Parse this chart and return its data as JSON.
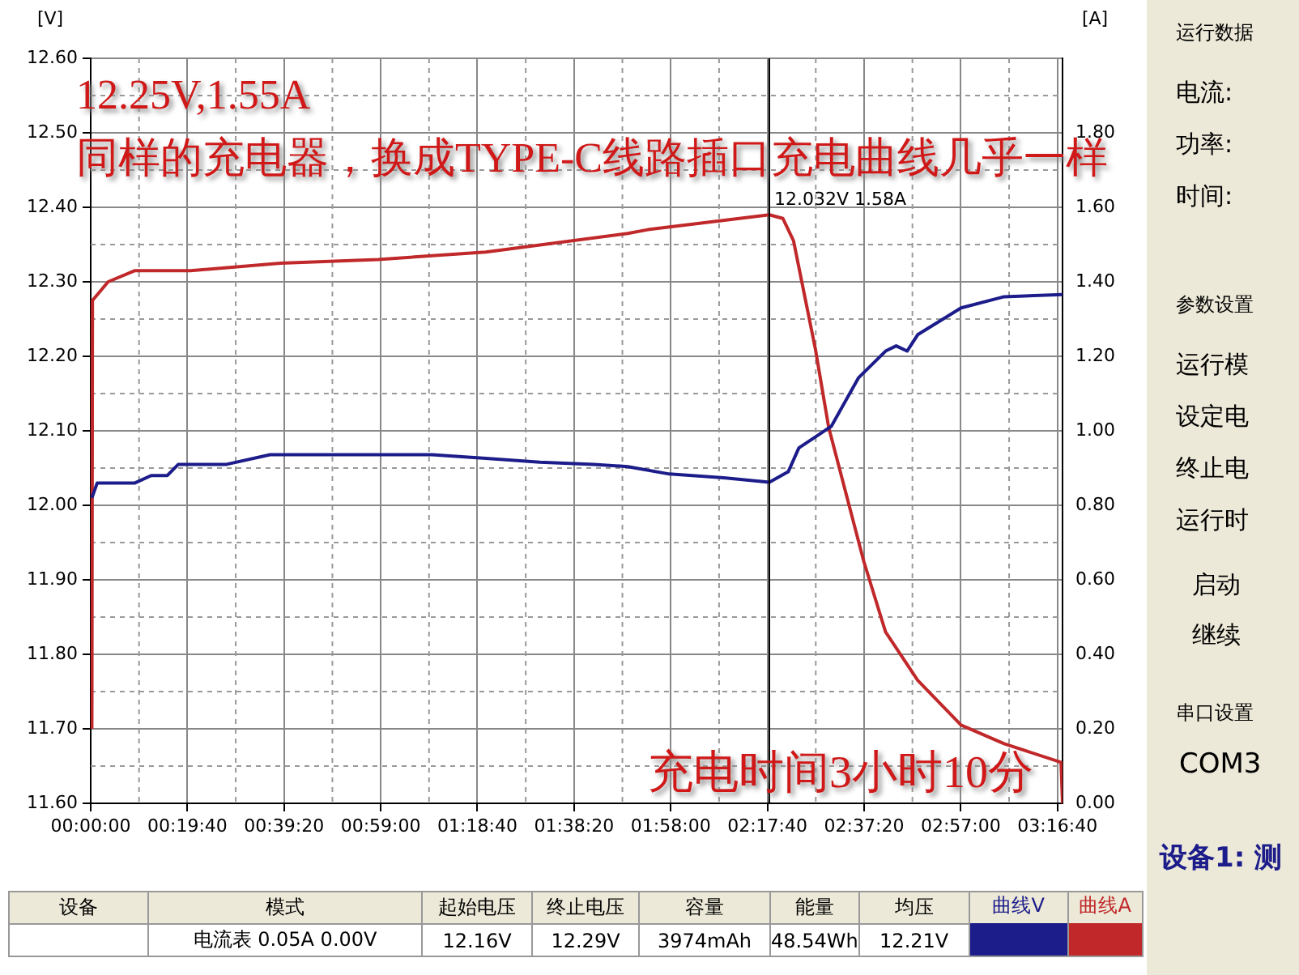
{
  "chart_data": {
    "type": "line",
    "ylabel": "[V]",
    "y2label": "[A]",
    "xlim": [
      0,
      3.295
    ],
    "xticks": [
      {
        "value": 0,
        "label": "00:00:00"
      },
      {
        "value": 0.3278,
        "label": "00:19:40"
      },
      {
        "value": 0.6556,
        "label": "00:39:20"
      },
      {
        "value": 0.9833,
        "label": "00:59:00"
      },
      {
        "value": 1.3111,
        "label": "01:18:40"
      },
      {
        "value": 1.6389,
        "label": "01:38:20"
      },
      {
        "value": 1.9667,
        "label": "01:58:00"
      },
      {
        "value": 2.2944,
        "label": "02:17:40"
      },
      {
        "value": 2.6222,
        "label": "02:37:20"
      },
      {
        "value": 2.95,
        "label": "02:57:00"
      },
      {
        "value": 3.2778,
        "label": "03:16:40"
      }
    ],
    "ylim": [
      11.6,
      12.6
    ],
    "yticks": [
      {
        "value": 11.6,
        "label": "11.60"
      },
      {
        "value": 11.7,
        "label": "11.70"
      },
      {
        "value": 11.8,
        "label": "11.80"
      },
      {
        "value": 11.9,
        "label": "11.90"
      },
      {
        "value": 12.0,
        "label": "12.00"
      },
      {
        "value": 12.1,
        "label": "12.10"
      },
      {
        "value": 12.2,
        "label": "12.20"
      },
      {
        "value": 12.3,
        "label": "12.30"
      },
      {
        "value": 12.4,
        "label": "12.40"
      },
      {
        "value": 12.5,
        "label": "12.50"
      },
      {
        "value": 12.6,
        "label": "12.60"
      }
    ],
    "y2lim": [
      0,
      2
    ],
    "y2ticks": [
      {
        "value": 0,
        "label": "0.00"
      },
      {
        "value": 0.2,
        "label": "0.20"
      },
      {
        "value": 0.4,
        "label": "0.40"
      },
      {
        "value": 0.6,
        "label": "0.60"
      },
      {
        "value": 0.8,
        "label": "0.80"
      },
      {
        "value": 1.0,
        "label": "1.00"
      },
      {
        "value": 1.2,
        "label": "1.20"
      },
      {
        "value": 1.4,
        "label": "1.40"
      },
      {
        "value": 1.6,
        "label": "1.60"
      },
      {
        "value": 1.8,
        "label": "1.80"
      }
    ],
    "grid": true,
    "legend": "bottom",
    "marker": "none",
    "line_style": "solid",
    "series": [
      {
        "name": "曲线V",
        "color": "#1c1c8a",
        "x": [
          0.004,
          0.022,
          0.15,
          0.205,
          0.26,
          0.297,
          0.461,
          0.608,
          0.974,
          1.157,
          1.34,
          1.523,
          1.706,
          1.821,
          1.962,
          2.146,
          2.301,
          2.365,
          2.401,
          2.511,
          2.603,
          2.695,
          2.731,
          2.768,
          2.804,
          2.951,
          3.097,
          3.295
        ],
        "values": [
          12.01,
          12.03,
          12.03,
          12.04,
          12.04,
          12.055,
          12.055,
          12.068,
          12.068,
          12.068,
          12.063,
          12.058,
          12.055,
          12.052,
          12.042,
          12.037,
          12.031,
          12.045,
          12.077,
          12.106,
          12.171,
          12.207,
          12.214,
          12.207,
          12.229,
          12.265,
          12.28,
          12.283
        ]
      },
      {
        "name": "曲线A",
        "color": "#c0282a",
        "axis": "y2",
        "x": [
          0.004,
          0.006,
          0.059,
          0.15,
          0.339,
          0.644,
          0.974,
          1.34,
          1.821,
          1.889,
          2.301,
          2.347,
          2.383,
          2.411,
          2.457,
          2.502,
          2.621,
          2.695,
          2.804,
          2.951,
          3.097,
          3.29,
          3.295
        ],
        "values": [
          0.2,
          1.35,
          1.4,
          1.43,
          1.43,
          1.45,
          1.46,
          1.48,
          1.53,
          1.54,
          1.58,
          1.57,
          1.51,
          1.4,
          1.22,
          1.01,
          0.65,
          0.46,
          0.33,
          0.21,
          0.16,
          0.11,
          0
        ]
      }
    ],
    "ref_lines": [
      {
        "axis": "x",
        "value": 2.301,
        "label": "12.032V 1.58A",
        "color": "#000000"
      }
    ],
    "annotations": [
      "12.25V,1.55A",
      "同样的充电器，换成TYPE-C线路插口充电曲线几乎一样",
      "充电时间3小时10分",
      "设备",
      "模式",
      "起始电压",
      "终止电压",
      "容量",
      "能量",
      "均压",
      "电流表  0.05A  0.00V",
      "12.16V",
      "12.29V",
      "3974mAh",
      "48.54Wh",
      "12.21V",
      "运行数据",
      "电流:",
      "功率:",
      "时间:",
      "参数设置",
      "运行模",
      "设定电",
      "终止电",
      "运行时",
      "启动",
      "继续",
      "串口设置",
      "COM3",
      "设备1: 测"
    ]
  }
}
